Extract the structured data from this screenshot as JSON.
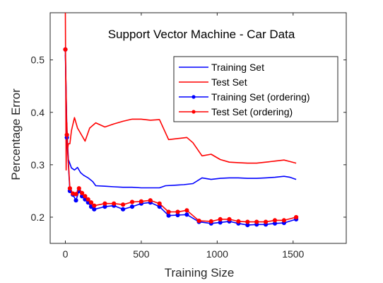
{
  "chart_data": {
    "type": "line",
    "title": "Support Vector Machine - Car Data",
    "xlabel": "Training Size",
    "ylabel": "Percentage Error",
    "xlim": [
      -100,
      1850
    ],
    "ylim": [
      0.15,
      0.59
    ],
    "xticks": [
      0,
      500,
      1000,
      1500
    ],
    "yticks": [
      0.2,
      0.3,
      0.4,
      0.5
    ],
    "xtick_labels": [
      "0",
      "500",
      "1000",
      "1500"
    ],
    "ytick_labels": [
      "0.2",
      "0.3",
      "0.4",
      "0.5"
    ],
    "grid": false,
    "legend_position": "top-right",
    "series": [
      {
        "name": "Training Set",
        "color": "#0000ff",
        "marker": "none",
        "x": [
          0,
          10,
          20,
          40,
          60,
          80,
          100,
          120,
          150,
          180,
          200,
          260,
          320,
          380,
          440,
          500,
          560,
          620,
          660,
          720,
          780,
          840,
          900,
          960,
          1020,
          1080,
          1140,
          1200,
          1260,
          1320,
          1380,
          1440,
          1480,
          1520
        ],
        "y": [
          0.51,
          0.37,
          0.31,
          0.294,
          0.29,
          0.295,
          0.285,
          0.28,
          0.275,
          0.268,
          0.26,
          0.259,
          0.258,
          0.257,
          0.257,
          0.256,
          0.256,
          0.256,
          0.26,
          0.261,
          0.262,
          0.264,
          0.275,
          0.272,
          0.274,
          0.275,
          0.275,
          0.274,
          0.274,
          0.275,
          0.276,
          0.278,
          0.276,
          0.272
        ]
      },
      {
        "name": "Test Set",
        "color": "#ff0000",
        "marker": "none",
        "x": [
          0,
          5,
          10,
          15,
          20,
          30,
          40,
          60,
          80,
          100,
          130,
          160,
          200,
          260,
          320,
          380,
          440,
          500,
          560,
          620,
          680,
          740,
          800,
          840,
          900,
          960,
          1020,
          1080,
          1140,
          1200,
          1260,
          1320,
          1380,
          1440,
          1480,
          1520
        ],
        "y": [
          0.59,
          0.29,
          0.38,
          0.33,
          0.34,
          0.34,
          0.365,
          0.39,
          0.37,
          0.36,
          0.345,
          0.37,
          0.38,
          0.372,
          0.378,
          0.383,
          0.387,
          0.387,
          0.385,
          0.386,
          0.348,
          0.35,
          0.352,
          0.342,
          0.317,
          0.32,
          0.31,
          0.305,
          0.304,
          0.303,
          0.303,
          0.305,
          0.307,
          0.309,
          0.306,
          0.303
        ]
      },
      {
        "name": "Training Set (ordering)",
        "color": "#0000ff",
        "marker": "circle",
        "x": [
          0,
          10,
          30,
          50,
          70,
          90,
          110,
          130,
          150,
          170,
          190,
          260,
          320,
          380,
          440,
          500,
          560,
          620,
          680,
          740,
          800,
          880,
          960,
          1020,
          1080,
          1140,
          1200,
          1260,
          1320,
          1380,
          1440,
          1520
        ],
        "y": [
          0.52,
          0.352,
          0.25,
          0.243,
          0.232,
          0.25,
          0.24,
          0.234,
          0.228,
          0.22,
          0.215,
          0.22,
          0.222,
          0.215,
          0.22,
          0.226,
          0.228,
          0.22,
          0.203,
          0.204,
          0.205,
          0.191,
          0.188,
          0.19,
          0.192,
          0.188,
          0.185,
          0.186,
          0.186,
          0.188,
          0.189,
          0.196
        ]
      },
      {
        "name": "Test Set (ordering)",
        "color": "#ff0000",
        "marker": "circle",
        "x": [
          0,
          10,
          30,
          50,
          70,
          90,
          110,
          130,
          150,
          170,
          190,
          260,
          320,
          380,
          440,
          500,
          560,
          620,
          680,
          740,
          800,
          880,
          960,
          1020,
          1080,
          1140,
          1200,
          1260,
          1320,
          1380,
          1440,
          1520
        ],
        "y": [
          0.52,
          0.357,
          0.255,
          0.245,
          0.244,
          0.255,
          0.246,
          0.24,
          0.234,
          0.228,
          0.222,
          0.226,
          0.226,
          0.224,
          0.229,
          0.23,
          0.232,
          0.226,
          0.21,
          0.21,
          0.213,
          0.193,
          0.192,
          0.196,
          0.196,
          0.192,
          0.191,
          0.191,
          0.191,
          0.194,
          0.194,
          0.2
        ]
      }
    ]
  }
}
